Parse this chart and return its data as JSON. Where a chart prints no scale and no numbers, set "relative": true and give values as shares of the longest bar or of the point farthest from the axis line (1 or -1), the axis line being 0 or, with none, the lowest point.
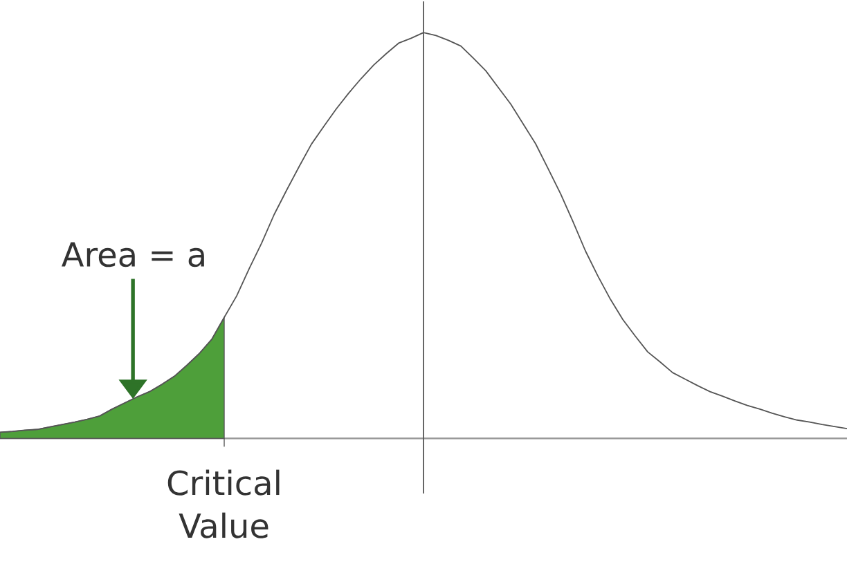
{
  "chart_data": {
    "type": "line",
    "relative": true,
    "categories": [
      null,
      null,
      null,
      null,
      null,
      null,
      null,
      null,
      null,
      null,
      null,
      null,
      null,
      null,
      null,
      null,
      null,
      null,
      null,
      null,
      null,
      null,
      null,
      null,
      null,
      null,
      null,
      null,
      null,
      null,
      null,
      null,
      null,
      null,
      null,
      null,
      null,
      null,
      null,
      null,
      null,
      null,
      null,
      null,
      null,
      null,
      null,
      null,
      null,
      null,
      null,
      null,
      null,
      null,
      null,
      null,
      null,
      null,
      null,
      null,
      null,
      null,
      null,
      null,
      null,
      null,
      null,
      null,
      null
    ],
    "series": [
      {
        "type": "area",
        "color": "#4e9f3a",
        "values": [
          0.015,
          0.017,
          0.02,
          0.022,
          0.028,
          0.034,
          0.04,
          0.047,
          0.055,
          0.072,
          0.087,
          0.102,
          0.115,
          0.133,
          0.153,
          0.18,
          0.209,
          0.244,
          0.298,
          null,
          null,
          null,
          null,
          null,
          null,
          null,
          null,
          null,
          null,
          null,
          null,
          null,
          null,
          null,
          null,
          null,
          null,
          null,
          null,
          null,
          null,
          null,
          null,
          null,
          null,
          null,
          null,
          null,
          null,
          null,
          null,
          null,
          null,
          null,
          null,
          null,
          null,
          null,
          null,
          null,
          null,
          null,
          null,
          null,
          null,
          null,
          null,
          null,
          null
        ]
      },
      {
        "color": "#555555",
        "values": [
          0.015,
          0.017,
          0.02,
          0.022,
          0.028,
          0.034,
          0.04,
          0.047,
          0.055,
          0.072,
          0.087,
          0.102,
          0.115,
          0.133,
          0.153,
          0.18,
          0.209,
          0.244,
          0.298,
          0.351,
          0.418,
          0.481,
          0.551,
          0.611,
          0.669,
          0.725,
          0.769,
          0.812,
          0.851,
          0.887,
          0.92,
          0.948,
          0.974,
          0.986,
          1.0,
          0.993,
          0.981,
          0.967,
          0.937,
          0.906,
          0.865,
          0.824,
          0.775,
          0.726,
          0.665,
          0.603,
          0.534,
          0.462,
          0.4,
          0.343,
          0.293,
          0.252,
          0.213,
          0.188,
          0.162,
          0.146,
          0.13,
          0.115,
          0.104,
          0.092,
          0.081,
          0.072,
          0.062,
          0.053,
          0.045,
          0.04,
          0.034,
          0.029,
          0.024
        ]
      }
    ],
    "annotations": [
      "Area = a",
      "Critical Value"
    ]
  }
}
